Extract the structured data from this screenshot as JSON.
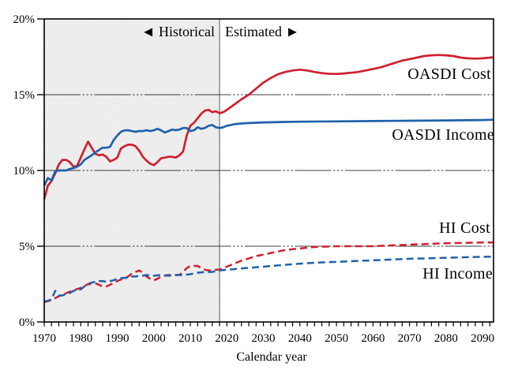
{
  "figure": {
    "background": "#ffffff",
    "region_labels": {
      "historical": "◄ Historical",
      "historical_color": "#7f7f7f",
      "estimated": "Estimated ►",
      "estimated_color": "#000000"
    }
  },
  "chart_data": {
    "type": "line",
    "title": "",
    "xlabel": "Calendar year",
    "ylabel": "",
    "x_range": [
      1970,
      2093
    ],
    "y_range": [
      0,
      20
    ],
    "historical_end_year": 2018,
    "shade_color": "#efefef",
    "shade_dot_color": "#dcdcdc",
    "divider_color": "#8c8c8c",
    "grid": "horizontal gridlines at 5% intervals, long-dash-plus-dots pattern",
    "legend_position": "inline labels on right side of plot",
    "x_minor_tick_step": 2,
    "x_ticks": [
      {
        "value": 1970,
        "label": "1970"
      },
      {
        "value": 1980,
        "label": "1980"
      },
      {
        "value": 1990,
        "label": "1990"
      },
      {
        "value": 2000,
        "label": "2000"
      },
      {
        "value": 2010,
        "label": "2010"
      },
      {
        "value": 2020,
        "label": "2020"
      },
      {
        "value": 2030,
        "label": "2030"
      },
      {
        "value": 2040,
        "label": "2040"
      },
      {
        "value": 2050,
        "label": "2050"
      },
      {
        "value": 2060,
        "label": "2060"
      },
      {
        "value": 2070,
        "label": "2070"
      },
      {
        "value": 2080,
        "label": "2080"
      },
      {
        "value": 2090,
        "label": "2090"
      }
    ],
    "y_ticks": [
      {
        "value": 0,
        "label": "0%"
      },
      {
        "value": 5,
        "label": "5%"
      },
      {
        "value": 10,
        "label": "10%"
      },
      {
        "value": 15,
        "label": "15%"
      },
      {
        "value": 20,
        "label": "20%"
      }
    ],
    "series": [
      {
        "name": "OASDI Cost",
        "color": "#cf2030",
        "line_style": "solid",
        "points": [
          [
            1970,
            8.1
          ],
          [
            1971,
            9.0
          ],
          [
            1972,
            9.3
          ],
          [
            1973,
            9.8
          ],
          [
            1974,
            10.4
          ],
          [
            1975,
            10.7
          ],
          [
            1976,
            10.7
          ],
          [
            1977,
            10.55
          ],
          [
            1978,
            10.25
          ],
          [
            1979,
            10.3
          ],
          [
            1980,
            10.85
          ],
          [
            1981,
            11.4
          ],
          [
            1982,
            11.9
          ],
          [
            1983,
            11.5
          ],
          [
            1984,
            11.1
          ],
          [
            1985,
            11.0
          ],
          [
            1986,
            11.05
          ],
          [
            1987,
            10.9
          ],
          [
            1988,
            10.6
          ],
          [
            1989,
            10.7
          ],
          [
            1990,
            10.85
          ],
          [
            1991,
            11.45
          ],
          [
            1992,
            11.6
          ],
          [
            1993,
            11.7
          ],
          [
            1994,
            11.7
          ],
          [
            1995,
            11.6
          ],
          [
            1996,
            11.3
          ],
          [
            1997,
            10.9
          ],
          [
            1998,
            10.65
          ],
          [
            1999,
            10.45
          ],
          [
            2000,
            10.35
          ],
          [
            2001,
            10.55
          ],
          [
            2002,
            10.8
          ],
          [
            2003,
            10.85
          ],
          [
            2004,
            10.9
          ],
          [
            2005,
            10.9
          ],
          [
            2006,
            10.85
          ],
          [
            2007,
            11.0
          ],
          [
            2008,
            11.25
          ],
          [
            2009,
            12.3
          ],
          [
            2010,
            12.95
          ],
          [
            2011,
            13.15
          ],
          [
            2012,
            13.45
          ],
          [
            2013,
            13.75
          ],
          [
            2014,
            13.95
          ],
          [
            2015,
            14.0
          ],
          [
            2016,
            13.85
          ],
          [
            2017,
            13.9
          ],
          [
            2018,
            13.78
          ],
          [
            2019,
            13.85
          ],
          [
            2020,
            14.0
          ],
          [
            2022,
            14.35
          ],
          [
            2024,
            14.7
          ],
          [
            2026,
            15.0
          ],
          [
            2028,
            15.4
          ],
          [
            2030,
            15.8
          ],
          [
            2032,
            16.1
          ],
          [
            2034,
            16.35
          ],
          [
            2036,
            16.5
          ],
          [
            2038,
            16.6
          ],
          [
            2040,
            16.65
          ],
          [
            2042,
            16.6
          ],
          [
            2044,
            16.5
          ],
          [
            2046,
            16.42
          ],
          [
            2048,
            16.38
          ],
          [
            2050,
            16.37
          ],
          [
            2052,
            16.4
          ],
          [
            2054,
            16.45
          ],
          [
            2056,
            16.5
          ],
          [
            2058,
            16.6
          ],
          [
            2060,
            16.7
          ],
          [
            2062,
            16.8
          ],
          [
            2064,
            16.95
          ],
          [
            2066,
            17.1
          ],
          [
            2068,
            17.25
          ],
          [
            2070,
            17.35
          ],
          [
            2072,
            17.45
          ],
          [
            2074,
            17.55
          ],
          [
            2076,
            17.6
          ],
          [
            2078,
            17.62
          ],
          [
            2080,
            17.6
          ],
          [
            2082,
            17.55
          ],
          [
            2084,
            17.45
          ],
          [
            2086,
            17.4
          ],
          [
            2088,
            17.38
          ],
          [
            2090,
            17.4
          ],
          [
            2092,
            17.45
          ],
          [
            2093,
            17.47
          ]
        ]
      },
      {
        "name": "OASDI Income",
        "color": "#2061a9",
        "line_style": "solid",
        "points": [
          [
            1970,
            9.0
          ],
          [
            1971,
            9.5
          ],
          [
            1972,
            9.35
          ],
          [
            1973,
            9.95
          ],
          [
            1974,
            10.0
          ],
          [
            1975,
            10.0
          ],
          [
            1976,
            10.0
          ],
          [
            1977,
            10.1
          ],
          [
            1978,
            10.15
          ],
          [
            1979,
            10.25
          ],
          [
            1980,
            10.4
          ],
          [
            1981,
            10.7
          ],
          [
            1982,
            10.85
          ],
          [
            1983,
            11.0
          ],
          [
            1984,
            11.2
          ],
          [
            1985,
            11.35
          ],
          [
            1986,
            11.5
          ],
          [
            1987,
            11.5
          ],
          [
            1988,
            11.55
          ],
          [
            1989,
            12.0
          ],
          [
            1990,
            12.3
          ],
          [
            1991,
            12.55
          ],
          [
            1992,
            12.65
          ],
          [
            1993,
            12.65
          ],
          [
            1994,
            12.6
          ],
          [
            1995,
            12.55
          ],
          [
            1996,
            12.6
          ],
          [
            1997,
            12.6
          ],
          [
            1998,
            12.65
          ],
          [
            1999,
            12.6
          ],
          [
            2000,
            12.65
          ],
          [
            2001,
            12.75
          ],
          [
            2002,
            12.65
          ],
          [
            2003,
            12.5
          ],
          [
            2004,
            12.6
          ],
          [
            2005,
            12.7
          ],
          [
            2006,
            12.65
          ],
          [
            2007,
            12.7
          ],
          [
            2008,
            12.8
          ],
          [
            2009,
            12.8
          ],
          [
            2010,
            12.6
          ],
          [
            2011,
            12.65
          ],
          [
            2012,
            12.85
          ],
          [
            2013,
            12.75
          ],
          [
            2014,
            12.8
          ],
          [
            2015,
            12.95
          ],
          [
            2016,
            13.0
          ],
          [
            2017,
            12.85
          ],
          [
            2018,
            12.8
          ],
          [
            2019,
            12.85
          ],
          [
            2020,
            12.95
          ],
          [
            2022,
            13.05
          ],
          [
            2025,
            13.12
          ],
          [
            2030,
            13.17
          ],
          [
            2035,
            13.2
          ],
          [
            2040,
            13.22
          ],
          [
            2050,
            13.24
          ],
          [
            2060,
            13.26
          ],
          [
            2070,
            13.28
          ],
          [
            2080,
            13.3
          ],
          [
            2090,
            13.33
          ],
          [
            2093,
            13.35
          ]
        ]
      },
      {
        "name": "HI Cost",
        "color": "#cf2030",
        "line_style": "dashed",
        "points": [
          [
            1970,
            1.3
          ],
          [
            1972,
            1.45
          ],
          [
            1974,
            1.7
          ],
          [
            1976,
            1.9
          ],
          [
            1978,
            2.1
          ],
          [
            1980,
            2.25
          ],
          [
            1982,
            2.5
          ],
          [
            1983,
            2.6
          ],
          [
            1984,
            2.55
          ],
          [
            1985,
            2.45
          ],
          [
            1986,
            2.35
          ],
          [
            1987,
            2.35
          ],
          [
            1988,
            2.45
          ],
          [
            1989,
            2.6
          ],
          [
            1990,
            2.7
          ],
          [
            1991,
            2.8
          ],
          [
            1992,
            2.9
          ],
          [
            1993,
            3.0
          ],
          [
            1994,
            3.2
          ],
          [
            1995,
            3.3
          ],
          [
            1996,
            3.4
          ],
          [
            1997,
            3.25
          ],
          [
            1998,
            3.0
          ],
          [
            1999,
            2.85
          ],
          [
            2000,
            2.75
          ],
          [
            2001,
            2.85
          ],
          [
            2002,
            3.0
          ],
          [
            2003,
            3.05
          ],
          [
            2004,
            3.1
          ],
          [
            2005,
            3.1
          ],
          [
            2006,
            3.1
          ],
          [
            2007,
            3.1
          ],
          [
            2008,
            3.3
          ],
          [
            2009,
            3.55
          ],
          [
            2010,
            3.7
          ],
          [
            2011,
            3.7
          ],
          [
            2012,
            3.7
          ],
          [
            2013,
            3.55
          ],
          [
            2014,
            3.45
          ],
          [
            2015,
            3.4
          ],
          [
            2016,
            3.4
          ],
          [
            2017,
            3.45
          ],
          [
            2018,
            3.45
          ],
          [
            2019,
            3.55
          ],
          [
            2020,
            3.65
          ],
          [
            2022,
            3.85
          ],
          [
            2024,
            4.05
          ],
          [
            2026,
            4.2
          ],
          [
            2028,
            4.35
          ],
          [
            2030,
            4.45
          ],
          [
            2032,
            4.55
          ],
          [
            2034,
            4.65
          ],
          [
            2036,
            4.75
          ],
          [
            2038,
            4.8
          ],
          [
            2040,
            4.85
          ],
          [
            2042,
            4.9
          ],
          [
            2044,
            4.95
          ],
          [
            2046,
            4.97
          ],
          [
            2048,
            4.98
          ],
          [
            2050,
            5.0
          ],
          [
            2055,
            5.0
          ],
          [
            2060,
            5.0
          ],
          [
            2065,
            5.05
          ],
          [
            2070,
            5.1
          ],
          [
            2075,
            5.15
          ],
          [
            2080,
            5.2
          ],
          [
            2085,
            5.22
          ],
          [
            2090,
            5.25
          ],
          [
            2093,
            5.25
          ]
        ]
      },
      {
        "name": "HI Income",
        "color": "#2061a9",
        "line_style": "dashed",
        "points": [
          [
            1970,
            1.35
          ],
          [
            1971,
            1.4
          ],
          [
            1972,
            1.5
          ],
          [
            1973,
            2.05
          ],
          [
            1974,
            1.75
          ],
          [
            1975,
            1.75
          ],
          [
            1976,
            1.85
          ],
          [
            1977,
            1.9
          ],
          [
            1978,
            2.05
          ],
          [
            1979,
            2.1
          ],
          [
            1980,
            2.15
          ],
          [
            1981,
            2.35
          ],
          [
            1982,
            2.4
          ],
          [
            1983,
            2.6
          ],
          [
            1984,
            2.65
          ],
          [
            1985,
            2.7
          ],
          [
            1986,
            2.7
          ],
          [
            1987,
            2.65
          ],
          [
            1988,
            2.7
          ],
          [
            1989,
            2.75
          ],
          [
            1990,
            2.85
          ],
          [
            1991,
            2.9
          ],
          [
            1992,
            2.9
          ],
          [
            1993,
            2.9
          ],
          [
            1994,
            3.0
          ],
          [
            1995,
            3.0
          ],
          [
            1996,
            3.05
          ],
          [
            1997,
            3.05
          ],
          [
            1998,
            3.1
          ],
          [
            1999,
            3.05
          ],
          [
            2000,
            3.05
          ],
          [
            2002,
            3.1
          ],
          [
            2004,
            3.05
          ],
          [
            2006,
            3.1
          ],
          [
            2008,
            3.1
          ],
          [
            2010,
            3.15
          ],
          [
            2012,
            3.25
          ],
          [
            2014,
            3.3
          ],
          [
            2016,
            3.3
          ],
          [
            2018,
            3.4
          ],
          [
            2020,
            3.45
          ],
          [
            2025,
            3.55
          ],
          [
            2030,
            3.65
          ],
          [
            2035,
            3.75
          ],
          [
            2040,
            3.85
          ],
          [
            2045,
            3.92
          ],
          [
            2050,
            3.97
          ],
          [
            2055,
            4.02
          ],
          [
            2060,
            4.07
          ],
          [
            2065,
            4.12
          ],
          [
            2070,
            4.17
          ],
          [
            2075,
            4.2
          ],
          [
            2080,
            4.24
          ],
          [
            2085,
            4.27
          ],
          [
            2090,
            4.3
          ],
          [
            2093,
            4.3
          ]
        ]
      }
    ]
  }
}
